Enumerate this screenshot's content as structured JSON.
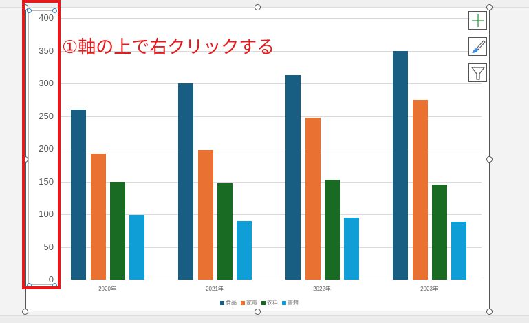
{
  "annotation": {
    "text": "①軸の上で右クリックする",
    "color": "#e41a1c"
  },
  "chart_buttons": [
    {
      "name": "chart-elements-button",
      "icon": "plus-icon"
    },
    {
      "name": "chart-styles-button",
      "icon": "paintbrush-icon"
    },
    {
      "name": "chart-filters-button",
      "icon": "filter-icon"
    }
  ],
  "chart_data": {
    "type": "bar",
    "title": "",
    "categories": [
      "2020年",
      "2021年",
      "2022年",
      "2023年"
    ],
    "series": [
      {
        "name": "食品",
        "color": "#175e82",
        "values": [
          260,
          300,
          313,
          350
        ]
      },
      {
        "name": "家電",
        "color": "#e97132",
        "values": [
          193,
          198,
          247,
          275
        ]
      },
      {
        "name": "衣料",
        "color": "#196b24",
        "values": [
          150,
          147,
          153,
          145
        ]
      },
      {
        "name": "書籍",
        "color": "#0f9ed5",
        "values": [
          99,
          90,
          95,
          88
        ]
      }
    ],
    "xlabel": "",
    "ylabel": "",
    "ylim": [
      0,
      400
    ],
    "yticks": [
      "0",
      "50",
      "100",
      "150",
      "200",
      "250",
      "300",
      "350",
      "400"
    ],
    "grid": true,
    "legend_position": "bottom"
  }
}
